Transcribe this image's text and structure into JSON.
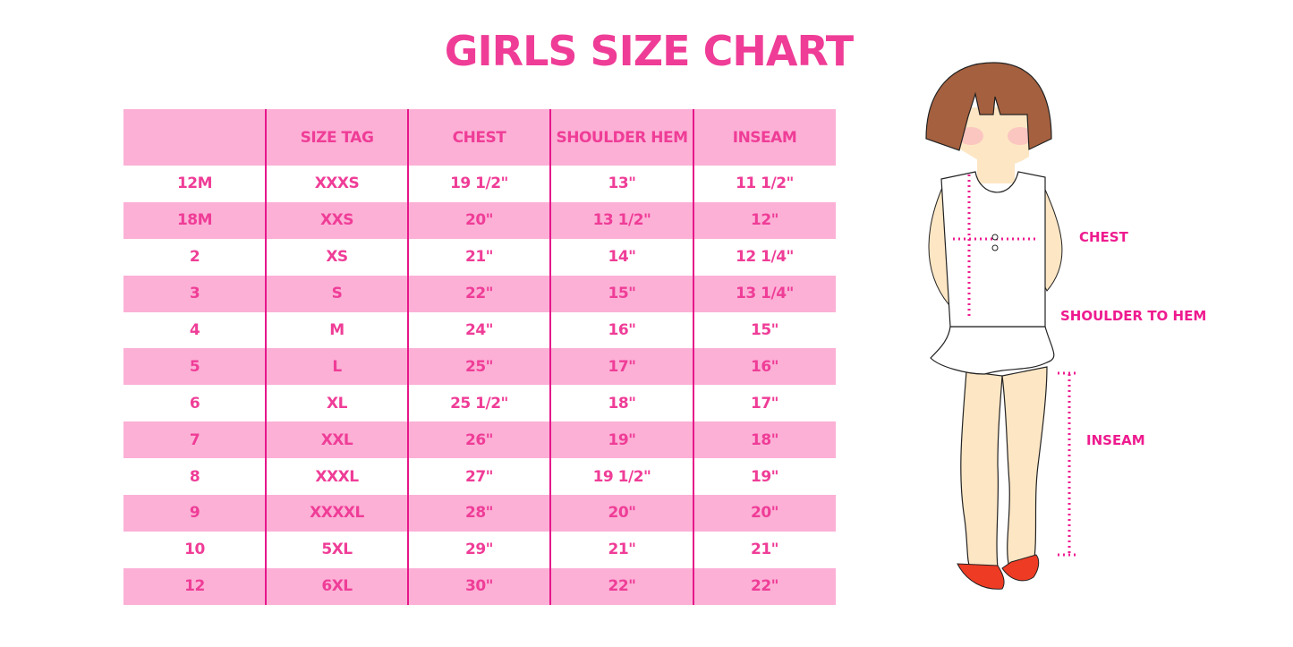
{
  "title": "GIRLS SIZE CHART",
  "table": {
    "headers": [
      "",
      "SIZE TAG",
      "CHEST",
      "SHOULDER HEM",
      "INSEAM"
    ],
    "rows": [
      [
        "12M",
        "XXXS",
        "19 1/2\"",
        "13\"",
        "11 1/2\""
      ],
      [
        "18M",
        "XXS",
        "20\"",
        "13 1/2\"",
        "12\""
      ],
      [
        "2",
        "XS",
        "21\"",
        "14\"",
        "12 1/4\""
      ],
      [
        "3",
        "S",
        "22\"",
        "15\"",
        "13 1/4\""
      ],
      [
        "4",
        "M",
        "24\"",
        "16\"",
        "15\""
      ],
      [
        "5",
        "L",
        "25\"",
        "17\"",
        "16\""
      ],
      [
        "6",
        "XL",
        "25 1/2\"",
        "18\"",
        "17\""
      ],
      [
        "7",
        "XXL",
        "26\"",
        "19\"",
        "18\""
      ],
      [
        "8",
        "XXXL",
        "27\"",
        "19 1/2\"",
        "19\""
      ],
      [
        "9",
        "XXXXL",
        "28\"",
        "20\"",
        "20\""
      ],
      [
        "10",
        "5XL",
        "29\"",
        "21\"",
        "21\""
      ],
      [
        "12",
        "6XL",
        "30\"",
        "22\"",
        "22\""
      ]
    ]
  },
  "illustration": {
    "labels": {
      "chest": "CHEST",
      "shoulder": "SHOULDER TO HEM",
      "inseam": "INSEAM"
    }
  },
  "colors": {
    "accent": "#ef3d97",
    "row_pink": "#fcb0d6",
    "divider": "#e6168a",
    "hair": "#a5603f",
    "skin": "#fde6c4",
    "shoes": "#ee3b24"
  }
}
